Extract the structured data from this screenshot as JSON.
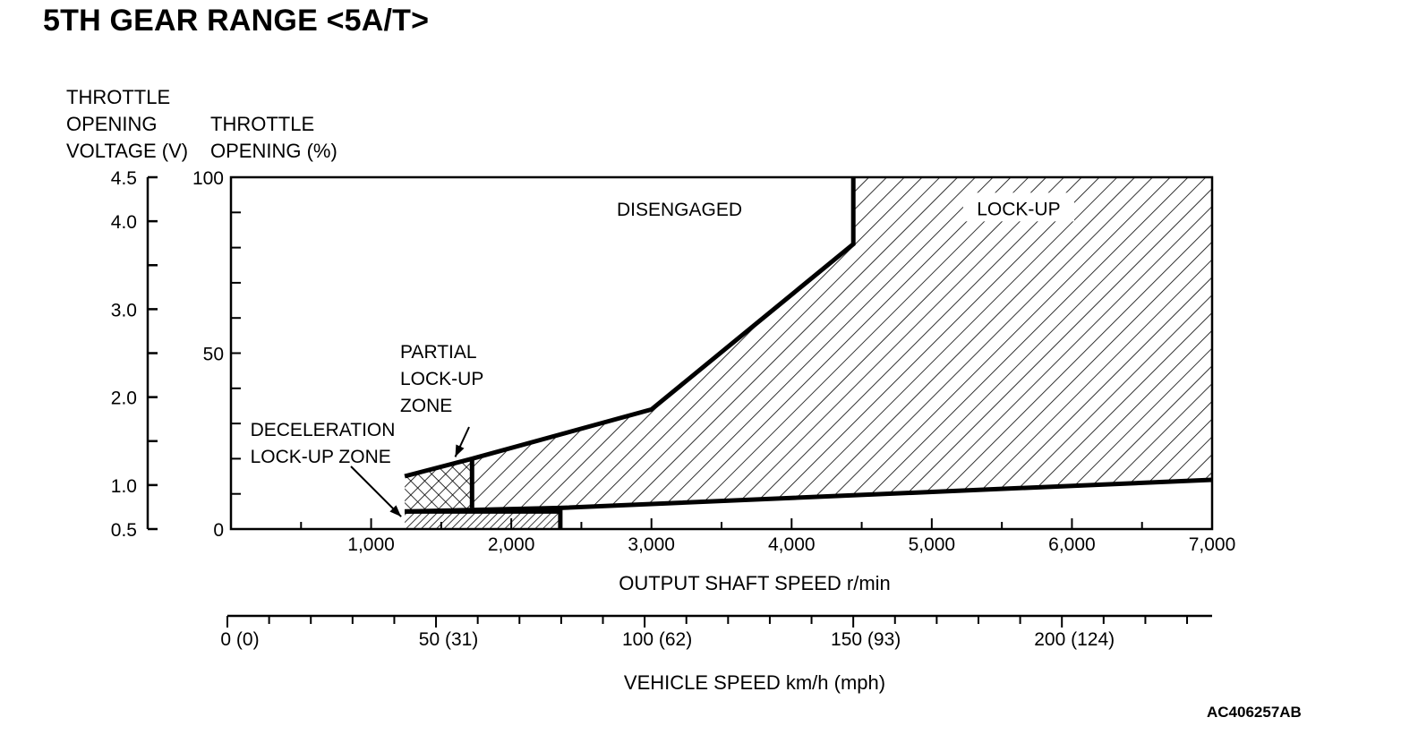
{
  "title": "5TH GEAR RANGE <5A/T>",
  "y_left_label": [
    "THROTTLE",
    "OPENING",
    "VOLTAGE (V)"
  ],
  "y_right_label": [
    "THROTTLE",
    "OPENING (%)"
  ],
  "figure_code": "AC406257AB",
  "chart_data": {
    "type": "area",
    "title": "5TH GEAR RANGE <5A/T>",
    "xlabel": "OUTPUT SHAFT SPEED r/min",
    "ylabel": "THROTTLE OPENING (%)",
    "xlim": [
      0,
      7000
    ],
    "ylim": [
      0,
      100
    ],
    "x_ticks": [
      1000,
      2000,
      3000,
      4000,
      5000,
      6000,
      7000
    ],
    "x_tick_labels": [
      "1,000",
      "2,000",
      "3,000",
      "4,000",
      "5,000",
      "6,000",
      "7,000"
    ],
    "y_ticks": [
      0,
      50,
      100
    ],
    "y_tick_labels": [
      "0",
      "50",
      "100"
    ],
    "voltage_axis": {
      "label": "THROTTLE OPENING VOLTAGE (V)",
      "range": [
        0.5,
        4.5
      ],
      "ticks": [
        0.5,
        1.0,
        2.0,
        3.0,
        4.0,
        4.5
      ],
      "tick_labels": [
        "0.5",
        "1.0",
        "2.0",
        "3.0",
        "4.0",
        "4.5"
      ],
      "minor_ticks": [
        1.5,
        2.5,
        3.5
      ]
    },
    "vehicle_speed_axis": {
      "label": "VEHICLE SPEED km/h (mph)",
      "range_kmh": [
        0,
        236
      ],
      "ticks_kmh": [
        0,
        50,
        100,
        150,
        200
      ],
      "tick_labels": [
        "0 (0)",
        "50 (31)",
        "100 (62)",
        "150 (93)",
        "200 (124)"
      ],
      "minor_step_kmh": 10
    },
    "regions": [
      {
        "name": "DISENGAGED",
        "label_anchor": [
          3200,
          89
        ],
        "pattern": "none",
        "points": [
          [
            0,
            0
          ],
          [
            1240,
            0
          ],
          [
            1240,
            5
          ],
          [
            2350,
            5
          ],
          [
            2350,
            6
          ],
          [
            7000,
            14
          ],
          [
            7000,
            100
          ],
          [
            4440,
            100
          ],
          [
            4440,
            81
          ],
          [
            3000,
            34
          ],
          [
            1720,
            20
          ],
          [
            1240,
            15
          ],
          [
            1240,
            0
          ]
        ]
      },
      {
        "name": "LOCK-UP",
        "label_anchor": [
          5620,
          90
        ],
        "pattern": "diagonal-hatch",
        "points": [
          [
            1720,
            5
          ],
          [
            1720,
            20
          ],
          [
            3000,
            34
          ],
          [
            4440,
            81
          ],
          [
            4440,
            100
          ],
          [
            7000,
            100
          ],
          [
            7000,
            14
          ],
          [
            2350,
            6
          ],
          [
            1720,
            6
          ]
        ]
      },
      {
        "name": "PARTIAL LOCK-UP ZONE",
        "label_anchor": [
          1520,
          46
        ],
        "pattern": "cross-hatch",
        "points": [
          [
            1240,
            5
          ],
          [
            1240,
            15
          ],
          [
            1720,
            20
          ],
          [
            1720,
            5
          ]
        ]
      },
      {
        "name": "DECELERATION LOCK-UP ZONE",
        "label_anchor": [
          700,
          27
        ],
        "pattern": "dense-diagonal-hatch",
        "points": [
          [
            1240,
            0
          ],
          [
            1240,
            5
          ],
          [
            2350,
            5
          ],
          [
            2350,
            0
          ]
        ]
      }
    ],
    "boundaries": [
      {
        "name": "lock-up upper boundary",
        "x": [
          1240,
          1720,
          3000,
          4440,
          4440
        ],
        "y": [
          15,
          20,
          34,
          81,
          100
        ]
      },
      {
        "name": "lock-up lower boundary",
        "x": [
          1240,
          2350,
          7000
        ],
        "y": [
          5,
          6,
          14
        ]
      },
      {
        "name": "partial lock-up divider",
        "x": [
          1720,
          1720
        ],
        "y": [
          6,
          20
        ]
      },
      {
        "name": "deceleration lock-up boundary",
        "x": [
          1240,
          2350,
          2350
        ],
        "y": [
          5,
          5,
          0
        ]
      }
    ],
    "annotations": [
      {
        "text": "PARTIAL LOCK-UP ZONE",
        "lines": [
          "PARTIAL",
          "LOCK-UP",
          "ZONE"
        ],
        "arrow_to": [
          1600,
          20
        ]
      },
      {
        "text": "DECELERATION LOCK-UP ZONE",
        "lines": [
          "DECELERATION",
          "LOCK-UP ZONE"
        ],
        "arrow_to": [
          1240,
          2
        ]
      }
    ],
    "grid": false,
    "legend": "none"
  }
}
